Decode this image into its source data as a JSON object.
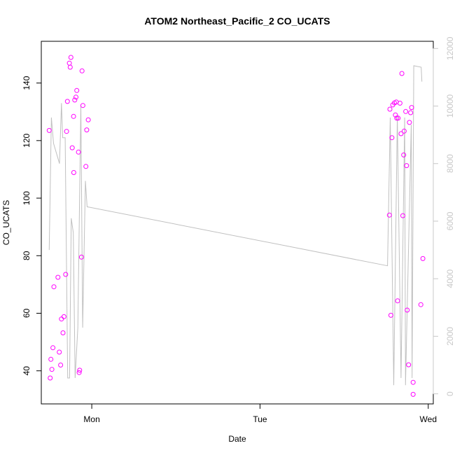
{
  "chart_data": {
    "type": "scatter",
    "title": "ATOM2 Northeast_Pacific_2 CO_UCATS",
    "xlabel": "Date",
    "ylabel": "CO_UCATS",
    "x_ticks": [
      {
        "label": "Mon",
        "value": 0.0
      },
      {
        "label": "Tue",
        "value": 1.0
      },
      {
        "label": "Wed",
        "value": 2.0
      }
    ],
    "xlim": [
      -0.3,
      2.03
    ],
    "ylim": [
      28.5,
      154.5
    ],
    "y_ticks": [
      40,
      60,
      80,
      100,
      120,
      140
    ],
    "y2lim": [
      -350,
      12250
    ],
    "y2_ticks": [
      0,
      2000,
      4000,
      6000,
      8000,
      10000,
      12000
    ],
    "grid": false,
    "colors": {
      "points": "#ff00ff",
      "line": "#c0c0c0",
      "right_axis": "#c8c8c8"
    },
    "series": [
      {
        "type": "scatter",
        "points": [
          {
            "x": -0.253,
            "y": 123.5
          },
          {
            "x": -0.247,
            "y": 37.5
          },
          {
            "x": -0.243,
            "y": 44.0
          },
          {
            "x": -0.237,
            "y": 40.5
          },
          {
            "x": -0.231,
            "y": 48.0
          },
          {
            "x": -0.225,
            "y": 69.2
          },
          {
            "x": -0.201,
            "y": 72.5
          },
          {
            "x": -0.193,
            "y": 46.5
          },
          {
            "x": -0.185,
            "y": 42.0
          },
          {
            "x": -0.18,
            "y": 58.0
          },
          {
            "x": -0.171,
            "y": 53.2
          },
          {
            "x": -0.165,
            "y": 58.8
          },
          {
            "x": -0.155,
            "y": 73.5
          },
          {
            "x": -0.15,
            "y": 123.2
          },
          {
            "x": -0.145,
            "y": 133.6
          },
          {
            "x": -0.133,
            "y": 146.9
          },
          {
            "x": -0.128,
            "y": 145.5
          },
          {
            "x": -0.124,
            "y": 148.9
          },
          {
            "x": -0.116,
            "y": 117.5
          },
          {
            "x": -0.108,
            "y": 128.4
          },
          {
            "x": -0.107,
            "y": 108.9
          },
          {
            "x": -0.101,
            "y": 134.1
          },
          {
            "x": -0.094,
            "y": 135.1
          },
          {
            "x": -0.089,
            "y": 137.4
          },
          {
            "x": -0.079,
            "y": 116.0
          },
          {
            "x": -0.075,
            "y": 39.4
          },
          {
            "x": -0.072,
            "y": 40.2
          },
          {
            "x": -0.061,
            "y": 79.5
          },
          {
            "x": -0.058,
            "y": 144.2
          },
          {
            "x": -0.053,
            "y": 132.2
          },
          {
            "x": -0.035,
            "y": 111.0
          },
          {
            "x": -0.03,
            "y": 123.7
          },
          {
            "x": -0.021,
            "y": 127.2
          },
          {
            "x": 1.769,
            "y": 94.1
          },
          {
            "x": 1.772,
            "y": 130.9
          },
          {
            "x": 1.778,
            "y": 59.3
          },
          {
            "x": 1.784,
            "y": 121.0
          },
          {
            "x": 1.789,
            "y": 132.4
          },
          {
            "x": 1.799,
            "y": 133.1
          },
          {
            "x": 1.805,
            "y": 128.9
          },
          {
            "x": 1.81,
            "y": 133.4
          },
          {
            "x": 1.813,
            "y": 127.8
          },
          {
            "x": 1.818,
            "y": 64.3
          },
          {
            "x": 1.821,
            "y": 127.8
          },
          {
            "x": 1.832,
            "y": 133.0
          },
          {
            "x": 1.838,
            "y": 122.4
          },
          {
            "x": 1.843,
            "y": 143.3
          },
          {
            "x": 1.849,
            "y": 93.9
          },
          {
            "x": 1.854,
            "y": 115.0
          },
          {
            "x": 1.857,
            "y": 123.3
          },
          {
            "x": 1.866,
            "y": 130.1
          },
          {
            "x": 1.871,
            "y": 111.3
          },
          {
            "x": 1.875,
            "y": 61.1
          },
          {
            "x": 1.883,
            "y": 42.1
          },
          {
            "x": 1.888,
            "y": 126.3
          },
          {
            "x": 1.895,
            "y": 129.7
          },
          {
            "x": 1.901,
            "y": 131.5
          },
          {
            "x": 1.91,
            "y": 36.0
          },
          {
            "x": 1.91,
            "y": 31.8
          },
          {
            "x": 1.956,
            "y": 63.0
          },
          {
            "x": 1.968,
            "y": 79.0
          }
        ]
      },
      {
        "type": "line",
        "axis": "right",
        "points": [
          {
            "x": -0.253,
            "y": 5000
          },
          {
            "x": -0.24,
            "y": 9600
          },
          {
            "x": -0.227,
            "y": 8700
          },
          {
            "x": -0.192,
            "y": 8000
          },
          {
            "x": -0.18,
            "y": 10100
          },
          {
            "x": -0.173,
            "y": 8900
          },
          {
            "x": -0.158,
            "y": 8900
          },
          {
            "x": -0.143,
            "y": 550
          },
          {
            "x": -0.132,
            "y": 550
          },
          {
            "x": -0.122,
            "y": 6100
          },
          {
            "x": -0.11,
            "y": 5600
          },
          {
            "x": -0.099,
            "y": 550
          },
          {
            "x": -0.083,
            "y": 2300
          },
          {
            "x": -0.065,
            "y": 10050
          },
          {
            "x": -0.054,
            "y": 2300
          },
          {
            "x": -0.038,
            "y": 7400
          },
          {
            "x": -0.028,
            "y": 6500
          },
          {
            "x": 1.758,
            "y": 4450
          },
          {
            "x": 1.774,
            "y": 9600
          },
          {
            "x": 1.795,
            "y": 300
          },
          {
            "x": 1.816,
            "y": 9650
          },
          {
            "x": 1.838,
            "y": 550
          },
          {
            "x": 1.86,
            "y": 9600
          },
          {
            "x": 1.865,
            "y": 300
          },
          {
            "x": 1.899,
            "y": 9350
          },
          {
            "x": 1.904,
            "y": 550
          },
          {
            "x": 1.914,
            "y": 11400
          },
          {
            "x": 1.958,
            "y": 11350
          },
          {
            "x": 1.962,
            "y": 10850
          }
        ]
      }
    ]
  }
}
